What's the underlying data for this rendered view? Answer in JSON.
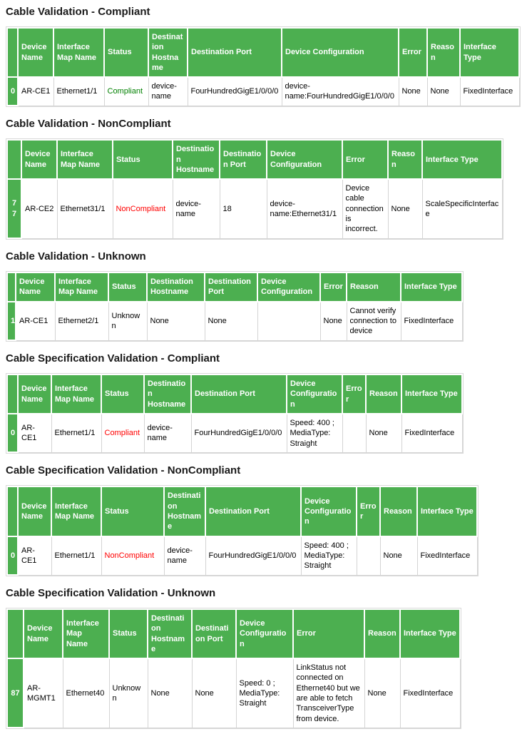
{
  "colors": {
    "header_background": "#4caf50",
    "header_text": "#ffffff",
    "status_green": "#008000",
    "status_red": "#ff0000",
    "status_black": "#000000",
    "grid_border": "#d4d4d4",
    "body_text": "#000000"
  },
  "table_columns": [
    "",
    "Device Name",
    "Interface Map Name",
    "Status",
    "Destination Hostname",
    "Destination Port",
    "Device Configuration",
    "Error",
    "Reason",
    "Interface Type"
  ],
  "tables": [
    {
      "title": "Cable Validation - Compliant",
      "row": {
        "index": "0",
        "device_name": "AR-CE1",
        "interface_map_name": "Ethernet1/1",
        "status": "Compliant",
        "status_color": "#008000",
        "destination_hostname": "device-name",
        "destination_port": "FourHundredGigE1/0/0/0",
        "device_configuration": "device-name:FourHundredGigE1/0/0/0",
        "error": "None",
        "reason": "None",
        "interface_type": "FixedInterface"
      }
    },
    {
      "title": "Cable Validation - NonCompliant",
      "row": {
        "index": "77",
        "device_name": "AR-CE2",
        "interface_map_name": "Ethernet31/1",
        "status": "NonCompliant",
        "status_color": "#ff0000",
        "destination_hostname": "device-name",
        "destination_port": "18",
        "device_configuration": "device-name:Ethernet31/1",
        "error": "Device cable connection is incorrect.",
        "reason": "None",
        "interface_type": "ScaleSpecificInterface"
      }
    },
    {
      "title": "Cable Validation - Unknown",
      "row": {
        "index": "1",
        "device_name": "AR-CE1",
        "interface_map_name": "Ethernet2/1",
        "status": "Unknown",
        "status_color": "#000000",
        "destination_hostname": "None",
        "destination_port": "None",
        "device_configuration": "",
        "error": "None",
        "reason": "Cannot verify connection to device",
        "interface_type": "FixedInterface"
      }
    },
    {
      "title": "Cable Specification Validation - Compliant",
      "row": {
        "index": "0",
        "device_name": "AR-CE1",
        "interface_map_name": "Ethernet1/1",
        "status": "Compliant",
        "status_color": "#ff0000",
        "destination_hostname": "device-name",
        "destination_port": "FourHundredGigE1/0/0/0",
        "device_configuration": "Speed: 400 ; MediaType: Straight",
        "error": "",
        "reason": "None",
        "interface_type": "FixedInterface"
      }
    },
    {
      "title": "Cable Specification Validation - NonCompliant",
      "row": {
        "index": "0",
        "device_name": "AR-CE1",
        "interface_map_name": "Ethernet1/1",
        "status": "NonCompliant",
        "status_color": "#ff0000",
        "destination_hostname": "device-name",
        "destination_port": "FourHundredGigE1/0/0/0",
        "device_configuration": "Speed: 400 ; MediaType: Straight",
        "error": "",
        "reason": "None",
        "interface_type": "FixedInterface"
      }
    },
    {
      "title": "Cable Specification Validation - Unknown",
      "row": {
        "index": "87",
        "device_name": "AR-MGMT1",
        "interface_map_name": "Ethernet40",
        "status": "Unknown",
        "status_color": "#000000",
        "destination_hostname": "None",
        "destination_port": "None",
        "device_configuration": "Speed: 0 ; MediaType: Straight",
        "error": "LinkStatus not connected on Ethernet40 but we are able to fetch TransceiverType from device.",
        "reason": "None",
        "interface_type": "FixedInterface"
      }
    }
  ]
}
